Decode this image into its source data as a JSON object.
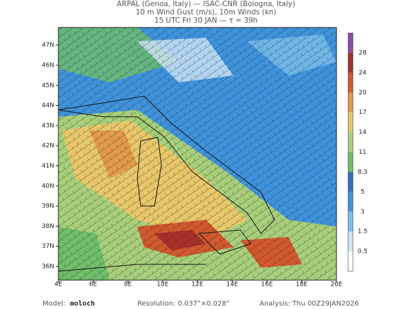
{
  "header": {
    "lines": [
      "ARPAL (Genoa, Italy)  —  ISAC-CNR (Bologna, Italy)",
      "10 m Wind Gust (m/s), 10m Winds (kn)",
      "15 UTC Fri 30 JAN  —  τ = 39h"
    ]
  },
  "map": {
    "lon_labels": [
      "4E",
      "6E",
      "8E",
      "10E",
      "12E",
      "14E",
      "16E",
      "18E",
      "20E"
    ],
    "lat_labels": [
      "36N",
      "37N",
      "38N",
      "39N",
      "40N",
      "41N",
      "42N",
      "43N",
      "44N",
      "45N",
      "46N",
      "47N"
    ]
  },
  "colorbar": {
    "labels": [
      "0.5",
      "1.5",
      "3",
      "5",
      "8.3",
      "11",
      "14",
      "17",
      "20",
      "24",
      "28"
    ],
    "colors": [
      "#ffffff",
      "#cfe6f6",
      "#7cc0ec",
      "#3f93dd",
      "#2e6fc4",
      "#6fbf6a",
      "#a8d07a",
      "#e8c86a",
      "#e39a4a",
      "#d2582e",
      "#a8302a",
      "#8a4fa8"
    ]
  },
  "footer": {
    "model_label": "Model:",
    "model": "moloch",
    "resolution": "Resolution: 0.037°×0.028°",
    "analysis": "Analysis: Thu 00Z29JAN2026"
  }
}
